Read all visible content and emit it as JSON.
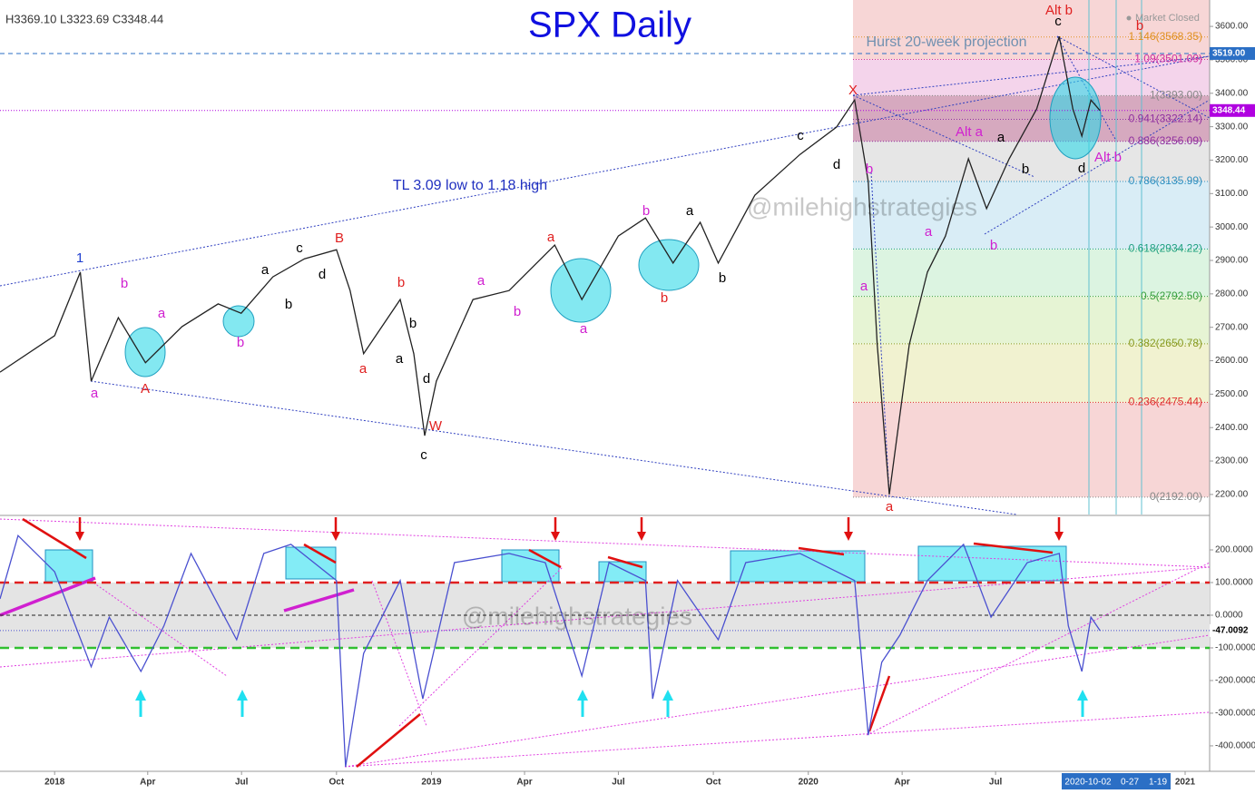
{
  "header": {
    "ohlc": "H3369.10  L3323.69  C3348.44",
    "status": "Market Closed"
  },
  "watermark": "@milehighstrategies",
  "x_cursor_labels": [
    "2020-10-02",
    "0-27",
    "1-19"
  ],
  "annotations": [
    "1",
    "b",
    "a",
    "a",
    "A",
    "b",
    "a",
    "b",
    "c",
    "d",
    "B",
    "b",
    "a",
    "a",
    "b",
    "d",
    "W",
    "c",
    "a",
    "b",
    "a",
    "a",
    "b",
    "b",
    "a",
    "b",
    "c",
    "d",
    "X",
    "b",
    "a",
    "a",
    "a",
    "b",
    "Alt a",
    "a",
    "b",
    "c",
    "Alt b",
    "d",
    "Alt b",
    "b",
    "TL 3.09 low to 1.18 high",
    "Hurst 20-week projection"
  ],
  "chart_data": [
    {
      "type": "line",
      "title": "SPX Daily",
      "color": "#222222",
      "x": [
        2017.855,
        2018.0,
        2018.068,
        2018.097,
        2018.169,
        2018.241,
        2018.338,
        2018.434,
        2018.495,
        2018.579,
        2018.663,
        2018.748,
        2018.784,
        2018.82,
        2018.917,
        2018.953,
        2018.982,
        2019.013,
        2019.11,
        2019.206,
        2019.327,
        2019.399,
        2019.496,
        2019.568,
        2019.641,
        2019.713,
        2019.761,
        2019.858,
        2019.978,
        2020.075,
        2020.123,
        2020.159,
        2020.183,
        2020.215,
        2020.268,
        2020.316,
        2020.364,
        2020.425,
        2020.473,
        2020.533,
        2020.606,
        2020.666,
        2020.702,
        2020.726,
        2020.75,
        2020.774
      ],
      "values": [
        2566,
        2675,
        2865,
        2539,
        2729,
        2594,
        2702,
        2770,
        2742,
        2851,
        2905,
        2932,
        2810,
        2621,
        2783,
        2621,
        2376,
        2539,
        2783,
        2810,
        2946,
        2783,
        2973,
        3027,
        2892,
        3014,
        2892,
        3095,
        3217,
        3299,
        3380,
        3136,
        2648,
        2200,
        2648,
        2865,
        2973,
        3204,
        3055,
        3204,
        3353,
        3570,
        3353,
        3272,
        3380,
        3348.44
      ],
      "xlim": [
        2017.855,
        2021.065
      ],
      "ylim": [
        2140,
        3679
      ],
      "yticks": [
        {
          "value": 2200,
          "label": "2200.00"
        },
        {
          "value": 2300,
          "label": "2300.00"
        },
        {
          "value": 2400,
          "label": "2400.00"
        },
        {
          "value": 2500,
          "label": "2500.00"
        },
        {
          "value": 2600,
          "label": "2600.00"
        },
        {
          "value": 2700,
          "label": "2700.00"
        },
        {
          "value": 2800,
          "label": "2800.00"
        },
        {
          "value": 2900,
          "label": "2900.00"
        },
        {
          "value": 3000,
          "label": "3000.00"
        },
        {
          "value": 3100,
          "label": "3100.00"
        },
        {
          "value": 3200,
          "label": "3200.00"
        },
        {
          "value": 3300,
          "label": "3300.00"
        },
        {
          "value": 3400,
          "label": "3400.00"
        },
        {
          "value": 3500,
          "label": "3500.00"
        },
        {
          "value": 3600,
          "label": "3600.00"
        }
      ],
      "price_tags": [
        {
          "value": 3519,
          "label": "3519.00",
          "color": "#2b6fc5"
        },
        {
          "value": 3348.44,
          "label": "3348.44",
          "color": "#b000e0"
        }
      ],
      "fib_levels": [
        {
          "value": 2192,
          "label": "0(2192.00)",
          "color": "#888888"
        },
        {
          "value": 2475.44,
          "label": "0.236(2475.44)",
          "color": "#e03030"
        },
        {
          "value": 2650.78,
          "label": "0.382(2650.78)",
          "color": "#8a9a20"
        },
        {
          "value": 2792.5,
          "label": "0.5(2792.50)",
          "color": "#3aa040"
        },
        {
          "value": 2934.22,
          "label": "0.618(2934.22)",
          "color": "#20a080"
        },
        {
          "value": 3135.99,
          "label": "0.786(3135.99)",
          "color": "#3090c0"
        },
        {
          "value": 3256.09,
          "label": "0.886(3256.09)",
          "color": "#9030a0"
        },
        {
          "value": 3322.14,
          "label": "0.941(3322.14)",
          "color": "#9030a0"
        },
        {
          "value": 3393,
          "label": "1(3393.00)",
          "color": "#888888"
        },
        {
          "value": 3501.09,
          "label": "1.09(3501.09)",
          "color": "#d030a0"
        },
        {
          "value": 3568.35,
          "label": "1.146(3568.35)",
          "color": "#e09020"
        }
      ]
    },
    {
      "type": "line",
      "color": "#4a50d0",
      "x": [
        2017.855,
        2017.903,
        2018.0,
        2018.097,
        2018.145,
        2018.229,
        2018.29,
        2018.362,
        2018.483,
        2018.555,
        2018.627,
        2018.748,
        2018.772,
        2018.82,
        2018.917,
        2018.977,
        2019.061,
        2019.206,
        2019.302,
        2019.399,
        2019.471,
        2019.568,
        2019.587,
        2019.653,
        2019.761,
        2019.834,
        2019.978,
        2020.123,
        2020.159,
        2020.195,
        2020.243,
        2020.316,
        2020.412,
        2020.485,
        2020.581,
        2020.666,
        2020.69,
        2020.726,
        2020.75,
        2020.774
      ],
      "values": [
        50,
        244,
        133,
        -158,
        -6,
        -172,
        -33,
        189,
        -75,
        189,
        217,
        106,
        -464,
        -117,
        106,
        -256,
        161,
        189,
        161,
        -186,
        161,
        106,
        -256,
        106,
        -75,
        161,
        189,
        106,
        -367,
        -144,
        -61,
        106,
        217,
        -6,
        161,
        189,
        -33,
        -172,
        -6,
        -47.0092
      ],
      "xlim": [
        2017.855,
        2021.065
      ],
      "ylim": [
        -478,
        300
      ],
      "xticks": [
        {
          "value": 2018,
          "label": "2018"
        },
        {
          "value": 2018.247,
          "label": "Apr"
        },
        {
          "value": 2018.496,
          "label": "Jul"
        },
        {
          "value": 2018.748,
          "label": "Oct"
        },
        {
          "value": 2019,
          "label": "2019"
        },
        {
          "value": 2019.247,
          "label": "Apr"
        },
        {
          "value": 2019.496,
          "label": "Jul"
        },
        {
          "value": 2019.748,
          "label": "Oct"
        },
        {
          "value": 2020,
          "label": "2020"
        },
        {
          "value": 2020.249,
          "label": "Apr"
        },
        {
          "value": 2020.497,
          "label": "Jul"
        },
        {
          "value": 2021,
          "label": "2021"
        }
      ],
      "yticks": [
        {
          "value": -400,
          "label": "-400.0000"
        },
        {
          "value": -300,
          "label": "-300.0000"
        },
        {
          "value": -200,
          "label": "-200.0000"
        },
        {
          "value": -100,
          "label": "-100.0000"
        },
        {
          "value": 0,
          "label": "0.0000"
        },
        {
          "value": 100,
          "label": "100.0000"
        },
        {
          "value": 200,
          "label": "200.0000"
        }
      ],
      "levels": [
        {
          "value": 100,
          "color": "#e02020"
        },
        {
          "value": 0,
          "color": "#222222"
        },
        {
          "value": -100,
          "color": "#30c030"
        }
      ],
      "price_tags": [
        {
          "value": -47.0092,
          "label": "-47.0092",
          "color": "#4a50d0"
        }
      ]
    }
  ]
}
